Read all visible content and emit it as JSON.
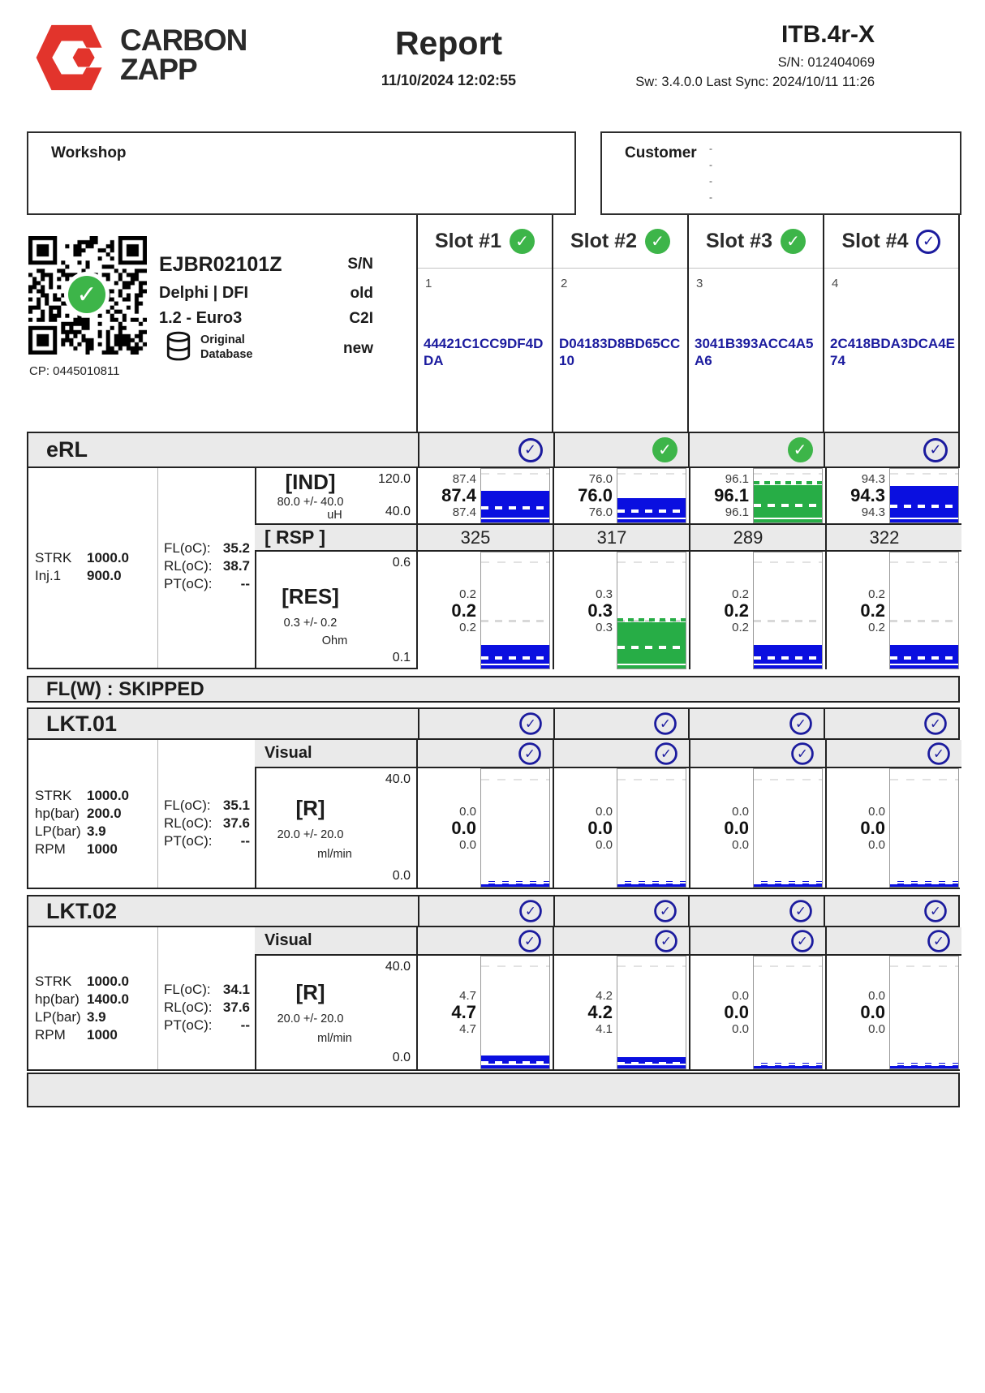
{
  "header": {
    "logo_line1": "CARBON",
    "logo_line2": "ZAPP",
    "title": "Report",
    "datetime": "11/10/2024 12:02:55",
    "model": "ITB.4r-X",
    "serial": "S/N: 012404069",
    "sw_line": "Sw: 3.4.0.0 Last Sync: 2024/10/11 11:26"
  },
  "boxes": {
    "workshop_label": "Workshop",
    "customer_label": "Customer",
    "customer_marks": [
      "-",
      "-",
      "-",
      "-"
    ]
  },
  "injector": {
    "code": "EJBR02101Z",
    "maker": "Delphi | DFI",
    "variant": "1.2 - Euro3",
    "db_line1": "Original",
    "db_line2": "Database",
    "cp": "CP: 0445010811",
    "label_sn": "S/N",
    "label_old": "old",
    "label_c2i": "C2I",
    "label_new": "new"
  },
  "slots": [
    {
      "title": "Slot #1",
      "status": "green",
      "index": "1",
      "c2i": "44421C1CC9DF4DDA"
    },
    {
      "title": "Slot #2",
      "status": "green",
      "index": "2",
      "c2i": "D04183D8BD65CC10"
    },
    {
      "title": "Slot #3",
      "status": "green",
      "index": "3",
      "c2i": "3041B393ACC4A5A6"
    },
    {
      "title": "Slot #4",
      "status": "blue",
      "index": "4",
      "c2i": "2C418BDA3DCA4E74"
    }
  ],
  "colors": {
    "accent_red": "#e2342c",
    "navy_check": "#1b1b9e",
    "bar_blue": "#0a0fe0",
    "bar_green": "#27ad46",
    "check_green": "#3db549",
    "gray_band": "#eaeaea"
  },
  "sections": {
    "erl": {
      "title": "eRL",
      "checks": [
        "blue",
        "green",
        "green",
        "blue"
      ],
      "params_left": [
        {
          "k": "STRK",
          "v": "1000.0"
        },
        {
          "k": "Inj.1",
          "v": "900.0"
        }
      ],
      "params_mid": [
        {
          "k": "FL(oC):",
          "v": "35.2"
        },
        {
          "k": "RL(oC):",
          "v": "38.7"
        },
        {
          "k": "PT(oC):",
          "v": "--"
        }
      ],
      "tests": [
        {
          "label": "[IND]",
          "tol": "80.0 +/- 40.0",
          "unit": "uH",
          "scale_top": "120.0",
          "scale_bottom": "40.0",
          "min": 40,
          "max": 120,
          "nominal": 80,
          "show_nominal": false,
          "slots": [
            {
              "hi": "87.4",
              "avg": "87.4",
              "lo": "87.4",
              "value": 87.4,
              "color": "blue"
            },
            {
              "hi": "76.0",
              "avg": "76.0",
              "lo": "76.0",
              "value": 76.0,
              "color": "blue"
            },
            {
              "hi": "96.1",
              "avg": "96.1",
              "lo": "96.1",
              "value": 96.1,
              "color": "green"
            },
            {
              "hi": "94.3",
              "avg": "94.3",
              "lo": "94.3",
              "value": 94.3,
              "color": "blue"
            }
          ]
        },
        {
          "label": "[RES]",
          "tol": "0.3 +/- 0.2",
          "unit": "Ohm",
          "scale_top": "0.6",
          "scale_bottom": "0.1",
          "min": 0.1,
          "max": 0.6,
          "nominal": 0.3,
          "show_nominal": true,
          "slots": [
            {
              "hi": "0.2",
              "avg": "0.2",
              "lo": "0.2",
              "value": 0.2,
              "color": "blue"
            },
            {
              "hi": "0.3",
              "avg": "0.3",
              "lo": "0.3",
              "value": 0.3,
              "color": "green"
            },
            {
              "hi": "0.2",
              "avg": "0.2",
              "lo": "0.2",
              "value": 0.2,
              "color": "blue"
            },
            {
              "hi": "0.2",
              "avg": "0.2",
              "lo": "0.2",
              "value": 0.2,
              "color": "blue"
            }
          ]
        }
      ],
      "rsp": {
        "label": "[ RSP ]",
        "values": [
          "325",
          "317",
          "289",
          "322"
        ]
      }
    },
    "flw": {
      "title": "FL(W) : SKIPPED"
    },
    "lkt01": {
      "title": "LKT.01",
      "checks": [
        "blue",
        "blue",
        "blue",
        "blue"
      ],
      "visual_label": "Visual",
      "visual_checks": [
        "blue",
        "blue",
        "blue",
        "blue"
      ],
      "params_left": [
        {
          "k": "STRK",
          "v": "1000.0"
        },
        {
          "k": "hp(bar)",
          "v": "200.0"
        },
        {
          "k": "LP(bar)",
          "v": "3.9"
        },
        {
          "k": "RPM",
          "v": "1000"
        }
      ],
      "params_mid": [
        {
          "k": "FL(oC):",
          "v": "35.1"
        },
        {
          "k": "RL(oC):",
          "v": "37.6"
        },
        {
          "k": "PT(oC):",
          "v": "--"
        }
      ],
      "test": {
        "label": "[R]",
        "tol": "20.0 +/- 20.0",
        "unit": "ml/min",
        "scale_top": "40.0",
        "scale_bottom": "0.0",
        "min": 0,
        "max": 40,
        "nominal": 20,
        "show_nominal": false,
        "slots": [
          {
            "hi": "0.0",
            "avg": "0.0",
            "lo": "0.0",
            "value": 0.0,
            "color": "blue"
          },
          {
            "hi": "0.0",
            "avg": "0.0",
            "lo": "0.0",
            "value": 0.0,
            "color": "blue"
          },
          {
            "hi": "0.0",
            "avg": "0.0",
            "lo": "0.0",
            "value": 0.0,
            "color": "blue"
          },
          {
            "hi": "0.0",
            "avg": "0.0",
            "lo": "0.0",
            "value": 0.0,
            "color": "blue"
          }
        ]
      }
    },
    "lkt02": {
      "title": "LKT.02",
      "checks": [
        "blue",
        "blue",
        "blue",
        "blue"
      ],
      "visual_label": "Visual",
      "visual_checks": [
        "blue",
        "blue",
        "blue",
        "blue"
      ],
      "params_left": [
        {
          "k": "STRK",
          "v": "1000.0"
        },
        {
          "k": "hp(bar)",
          "v": "1400.0"
        },
        {
          "k": "LP(bar)",
          "v": "3.9"
        },
        {
          "k": "RPM",
          "v": "1000"
        }
      ],
      "params_mid": [
        {
          "k": "FL(oC):",
          "v": "34.1"
        },
        {
          "k": "RL(oC):",
          "v": "37.6"
        },
        {
          "k": "PT(oC):",
          "v": "--"
        }
      ],
      "test": {
        "label": "[R]",
        "tol": "20.0 +/- 20.0",
        "unit": "ml/min",
        "scale_top": "40.0",
        "scale_bottom": "0.0",
        "min": 0,
        "max": 40,
        "nominal": 20,
        "show_nominal": false,
        "slots": [
          {
            "hi": "4.7",
            "avg": "4.7",
            "lo": "4.7",
            "value": 4.7,
            "color": "blue"
          },
          {
            "hi": "4.2",
            "avg": "4.2",
            "lo": "4.1",
            "value": 4.2,
            "color": "blue"
          },
          {
            "hi": "0.0",
            "avg": "0.0",
            "lo": "0.0",
            "value": 0.0,
            "color": "blue"
          },
          {
            "hi": "0.0",
            "avg": "0.0",
            "lo": "0.0",
            "value": 0.0,
            "color": "blue"
          }
        ]
      }
    }
  }
}
